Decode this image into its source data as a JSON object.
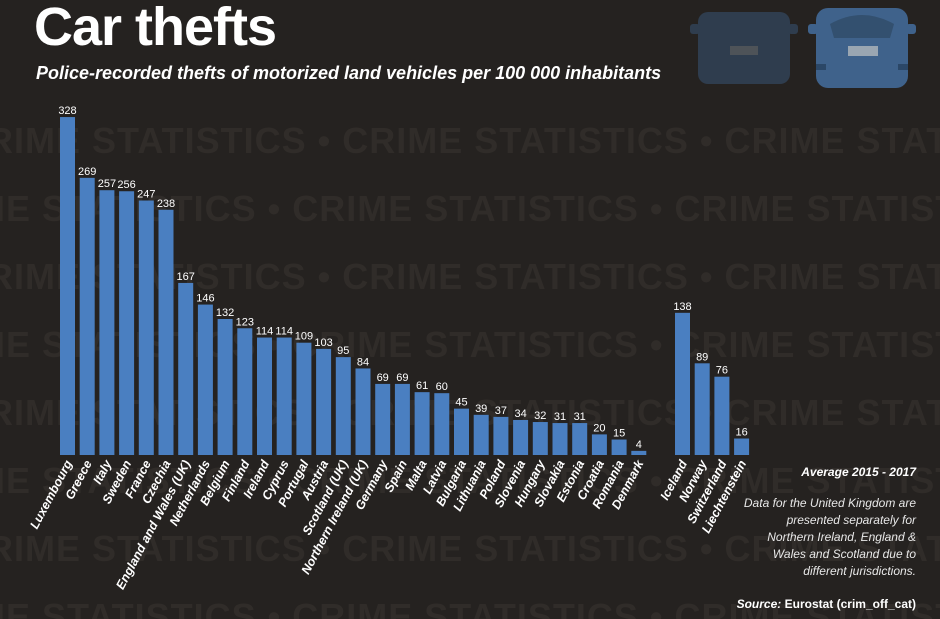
{
  "watermark_text": "CRIME STATISTICS • CRIME STATISTICS • CRIME STATISTICS • CRIME STATISTICS • CRIME STATISTICS •",
  "colors": {
    "background": "#252220",
    "bar": "#4a7fc1",
    "car_dark": "#2f3d4e",
    "car_light": "#3f628b"
  },
  "icons": [
    "car-rear-icon",
    "car-rear-icon"
  ],
  "chart_data": {
    "type": "bar",
    "title": "Car thefts",
    "subtitle": "Police-recorded thefts of motorized land vehicles per 100 000 inhabitants",
    "xlabel": "",
    "ylabel": "",
    "ylim": [
      0,
      330
    ],
    "grid": false,
    "groups": [
      {
        "categories": [
          "Luxembourg",
          "Greece",
          "Italy",
          "Sweden",
          "France",
          "Czechia",
          "England and Wales (UK)",
          "Netherlands",
          "Belgium",
          "Finland",
          "Ireland",
          "Cyprus",
          "Portugal",
          "Austria",
          "Scotland (UK)",
          "Northern Ireland (UK)",
          "Germany",
          "Spain",
          "Malta",
          "Latvia",
          "Bulgaria",
          "Lithuania",
          "Poland",
          "Slovenia",
          "Hungary",
          "Slovakia",
          "Estonia",
          "Croatia",
          "Romania",
          "Denmark"
        ],
        "values": [
          328,
          269,
          257,
          256,
          247,
          238,
          167,
          146,
          132,
          123,
          114,
          114,
          109,
          103,
          95,
          84,
          69,
          69,
          61,
          60,
          45,
          39,
          37,
          34,
          32,
          31,
          31,
          20,
          15,
          4
        ]
      },
      {
        "categories": [
          "Iceland",
          "Norway",
          "Switzerland",
          "Liechtenstein"
        ],
        "values": [
          138,
          89,
          76,
          16
        ]
      }
    ],
    "period_label": "Average 2015 - 2017",
    "note": "Data for the United Kingdom are presented separately for Northern Ireland, England & Wales and Scotland due to different jurisdictions.",
    "source_label": "Source:",
    "source_value": "Eurostat (crim_off_cat)"
  }
}
